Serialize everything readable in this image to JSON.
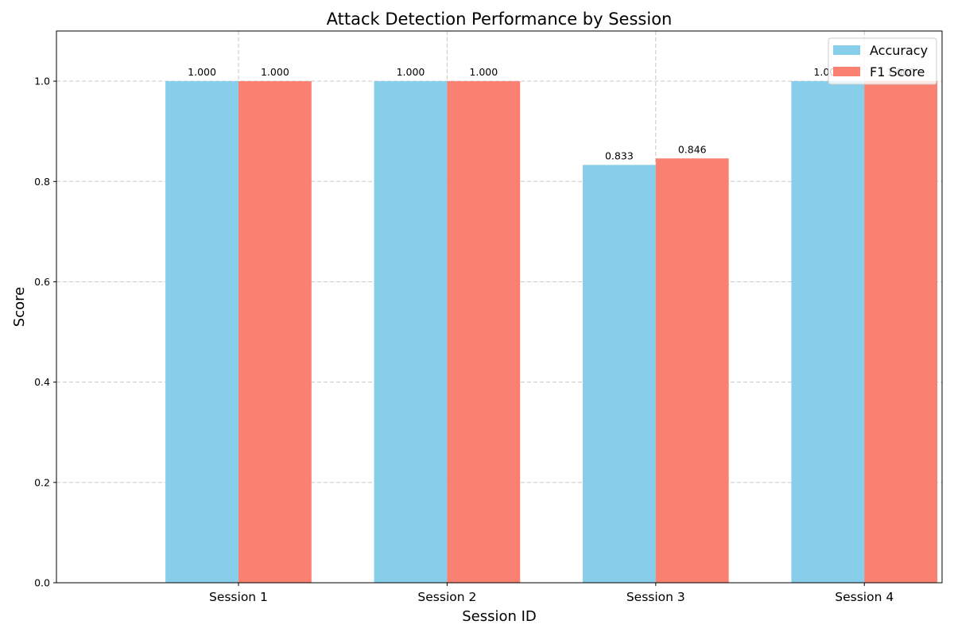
{
  "chart_data": {
    "type": "bar",
    "title": "Attack Detection Performance by Session",
    "xlabel": "Session ID",
    "ylabel": "Score",
    "categories": [
      "Session 1",
      "Session 2",
      "Session 3",
      "Session 4"
    ],
    "series": [
      {
        "name": "Accuracy",
        "color": "#87CEEB",
        "values": [
          1.0,
          1.0,
          0.833,
          1.0
        ],
        "labels": [
          "1.000",
          "1.000",
          "0.833",
          "1.000"
        ]
      },
      {
        "name": "F1 Score",
        "color": "#FA8072",
        "values": [
          1.0,
          1.0,
          0.846,
          1.0
        ],
        "labels": [
          "1.000",
          "1.000",
          "0.846",
          "1.000"
        ]
      }
    ],
    "ylim": [
      0,
      1.1
    ],
    "yticks": [
      0.0,
      0.2,
      0.4,
      0.6,
      0.8,
      1.0
    ],
    "ytick_labels": [
      "0.0",
      "0.2",
      "0.4",
      "0.6",
      "0.8",
      "1.0"
    ],
    "grid": true,
    "legend_position": "top-right"
  }
}
